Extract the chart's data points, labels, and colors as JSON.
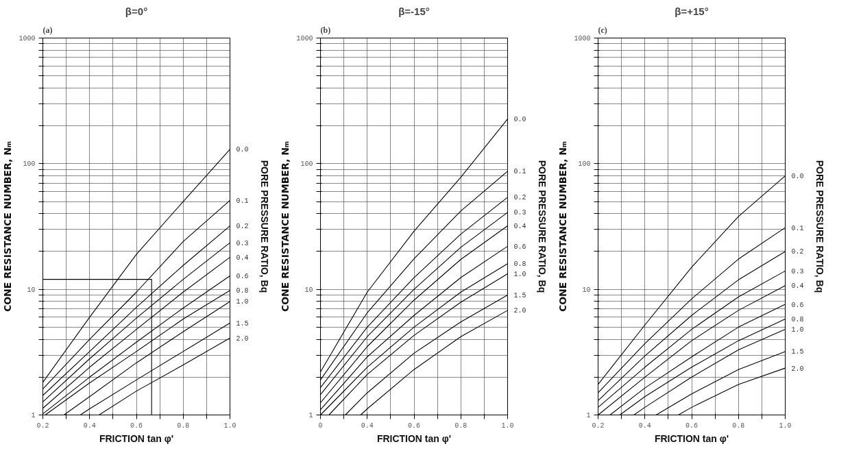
{
  "chart_data": [
    {
      "type": "line",
      "title": "β=0°",
      "annotations": [
        "(a)"
      ],
      "xlabel": "FRICTION tan φ'",
      "ylabel": "CONE RESISTANCE NUMBER, Nₘ",
      "y2label": "PORE PRESSURE RATIO, Bq",
      "xlim": [
        0.2,
        1.0
      ],
      "ylim": [
        1,
        1000
      ],
      "log": true,
      "grid": true,
      "marker": "none",
      "line_style": "solid",
      "xticks": [
        0.2,
        {
          "value": 0.3,
          "label": null
        },
        0.4,
        {
          "value": 0.5,
          "label": null
        },
        0.6,
        {
          "value": 0.7,
          "label": null
        },
        0.8,
        {
          "value": 0.9,
          "label": null
        },
        {
          "value": 1.0,
          "label": "1.0"
        }
      ],
      "yticks": [
        1,
        {
          "value": 2,
          "label": null
        },
        {
          "value": 3,
          "label": null
        },
        {
          "value": 4,
          "label": null
        },
        {
          "value": 5,
          "label": null
        },
        {
          "value": 6,
          "label": null
        },
        {
          "value": 7,
          "label": null
        },
        {
          "value": 8,
          "label": null
        },
        {
          "value": 9,
          "label": null
        },
        10,
        {
          "value": 20,
          "label": null
        },
        {
          "value": 30,
          "label": null
        },
        {
          "value": 40,
          "label": null
        },
        {
          "value": 50,
          "label": null
        },
        {
          "value": 60,
          "label": null
        },
        {
          "value": 70,
          "label": null
        },
        {
          "value": 80,
          "label": null
        },
        {
          "value": 90,
          "label": null
        },
        100,
        {
          "value": 200,
          "label": null
        },
        {
          "value": 300,
          "label": null
        },
        {
          "value": 400,
          "label": null
        },
        {
          "value": 500,
          "label": null
        },
        {
          "value": 600,
          "label": null
        },
        {
          "value": 700,
          "label": null
        },
        {
          "value": 800,
          "label": null
        },
        {
          "value": 900,
          "label": null
        },
        1000
      ],
      "series": [
        {
          "name": "0.0",
          "color": "#000000",
          "x": [
            0.2,
            0.4,
            0.6,
            0.8,
            1.0
          ],
          "values": [
            1.82,
            6,
            19,
            50,
            130
          ]
        },
        {
          "name": "0.1",
          "color": "#000000",
          "x": [
            0.2,
            0.4,
            0.6,
            0.8,
            1.0
          ],
          "values": [
            1.61,
            4,
            9.5,
            24,
            51
          ]
        },
        {
          "name": "0.2",
          "color": "#000000",
          "x": [
            0.2,
            0.4,
            0.6,
            0.8,
            1.0
          ],
          "values": [
            1.43,
            3.2,
            7.2,
            15.5,
            32
          ]
        },
        {
          "name": "0.3",
          "color": "#000000",
          "x": [
            0.2,
            0.4,
            0.6,
            0.8,
            1.0
          ],
          "values": [
            1.27,
            2.8,
            5.9,
            12,
            23.5
          ]
        },
        {
          "name": "0.4",
          "color": "#000000",
          "x": [
            0.2,
            0.4,
            0.6,
            0.8,
            1.0
          ],
          "values": [
            1.13,
            2.4,
            4.8,
            9.5,
            18
          ]
        },
        {
          "name": "0.6",
          "color": "#000000",
          "x": [
            0.2,
            0.4,
            0.6,
            0.8,
            1.0
          ],
          "values": [
            1.02,
            2.0,
            3.8,
            7.1,
            12.8
          ]
        },
        {
          "name": "0.8",
          "color": "#000000",
          "x": [
            0.21,
            0.4,
            0.6,
            0.8,
            1.0
          ],
          "values": [
            1,
            1.8,
            3.2,
            5.8,
            9.8
          ]
        },
        {
          "name": "1.0",
          "color": "#000000",
          "x": [
            0.29,
            0.4,
            0.6,
            0.8,
            1.0
          ],
          "values": [
            1,
            1.4,
            2.6,
            4.6,
            8
          ]
        },
        {
          "name": "1.5",
          "color": "#000000",
          "x": [
            0.36,
            0.4,
            0.6,
            0.8,
            1.0
          ],
          "values": [
            1,
            1.12,
            1.9,
            3.2,
            5.4
          ]
        },
        {
          "name": "2.0",
          "color": "#000000",
          "x": [
            0.44,
            0.6,
            0.8,
            1.0
          ],
          "values": [
            1,
            1.55,
            2.5,
            4.1
          ]
        },
        {
          "color": "#000000",
          "x": [
            0.2,
            0.665,
            0.665
          ],
          "values": [
            12,
            12,
            1
          ]
        }
      ]
    },
    {
      "type": "line",
      "title": "β=-15°",
      "annotations": [
        "(b)"
      ],
      "xlabel": "FRICTION tan φ'",
      "ylabel": "CONE RESISTANCE NUMBER, Nₘ",
      "y2label": "PORE PRESSURE RATIO, Bq",
      "xlim": [
        0.2,
        1.0
      ],
      "ylim": [
        1,
        1000
      ],
      "log": true,
      "grid": true,
      "marker": "none",
      "line_style": "solid",
      "xticks": [
        {
          "value": 0.2,
          "label": "0"
        },
        {
          "value": 0.3,
          "label": null
        },
        0.4,
        {
          "value": 0.5,
          "label": null
        },
        0.6,
        {
          "value": 0.7,
          "label": null
        },
        0.8,
        {
          "value": 0.9,
          "label": null
        },
        {
          "value": 1.0,
          "label": "1.0"
        }
      ],
      "yticks": [
        1,
        {
          "value": 2,
          "label": null
        },
        {
          "value": 3,
          "label": null
        },
        {
          "value": 4,
          "label": null
        },
        {
          "value": 5,
          "label": null
        },
        {
          "value": 6,
          "label": null
        },
        {
          "value": 7,
          "label": null
        },
        {
          "value": 8,
          "label": null
        },
        {
          "value": 9,
          "label": null
        },
        10,
        {
          "value": 20,
          "label": null
        },
        {
          "value": 30,
          "label": null
        },
        {
          "value": 40,
          "label": null
        },
        {
          "value": 50,
          "label": null
        },
        {
          "value": 60,
          "label": null
        },
        {
          "value": 70,
          "label": null
        },
        {
          "value": 80,
          "label": null
        },
        {
          "value": 90,
          "label": null
        },
        100,
        {
          "value": 200,
          "label": null
        },
        {
          "value": 300,
          "label": null
        },
        {
          "value": 400,
          "label": null
        },
        {
          "value": 500,
          "label": null
        },
        {
          "value": 600,
          "label": null
        },
        {
          "value": 700,
          "label": null
        },
        {
          "value": 800,
          "label": null
        },
        {
          "value": 900,
          "label": null
        },
        1000
      ],
      "series": [
        {
          "name": "0.0",
          "color": "#000000",
          "x": [
            0.2,
            0.4,
            0.6,
            0.8,
            1.0
          ],
          "values": [
            2.2,
            9.5,
            29,
            78,
            227
          ]
        },
        {
          "name": "0.1",
          "color": "#000000",
          "x": [
            0.2,
            0.4,
            0.6,
            0.8,
            1.0
          ],
          "values": [
            1.9,
            6.5,
            17.5,
            42,
            87
          ]
        },
        {
          "name": "0.2",
          "color": "#000000",
          "x": [
            0.2,
            0.4,
            0.6,
            0.8,
            1.0
          ],
          "values": [
            1.65,
            5,
            12.4,
            27.5,
            54
          ]
        },
        {
          "name": "0.3",
          "color": "#000000",
          "x": [
            0.2,
            0.4,
            0.6,
            0.8,
            1.0
          ],
          "values": [
            1.45,
            4.2,
            10,
            21.6,
            41
          ]
        },
        {
          "name": "0.4",
          "color": "#000000",
          "x": [
            0.2,
            0.4,
            0.6,
            0.8,
            1.0
          ],
          "values": [
            1.25,
            3.5,
            8.2,
            17.3,
            32
          ]
        },
        {
          "name": "0.6",
          "color": "#000000",
          "x": [
            0.2,
            0.4,
            0.6,
            0.8,
            1.0
          ],
          "values": [
            1.1,
            2.9,
            6.2,
            12.4,
            22
          ]
        },
        {
          "name": "0.8",
          "color": "#000000",
          "x": [
            0.2,
            0.4,
            0.6,
            0.8,
            1.0
          ],
          "values": [
            1,
            2.4,
            5,
            9.5,
            16
          ]
        },
        {
          "name": "1.0",
          "color": "#000000",
          "x": [
            0.236,
            0.4,
            0.6,
            0.8,
            1.0
          ],
          "values": [
            1,
            2.1,
            4.3,
            7.9,
            13.3
          ]
        },
        {
          "name": "1.5",
          "color": "#000000",
          "x": [
            0.306,
            0.4,
            0.6,
            0.8,
            1.0
          ],
          "values": [
            1,
            1.5,
            3.1,
            5.5,
            9
          ]
        },
        {
          "name": "2.0",
          "color": "#000000",
          "x": [
            0.372,
            0.4,
            0.6,
            0.8,
            1.0
          ],
          "values": [
            1,
            1.12,
            2.3,
            4.2,
            6.8
          ]
        }
      ]
    },
    {
      "type": "line",
      "title": "β=+15°",
      "annotations": [
        "(c)"
      ],
      "xlabel": "FRICTION tan φ'",
      "ylabel": "CONE RESISTANCE NUMBER, Nₘ",
      "y2label": "PORE PRESSURE RATIO, Bq",
      "xlim": [
        0.2,
        1.0
      ],
      "ylim": [
        1,
        1000
      ],
      "log": true,
      "grid": true,
      "marker": "none",
      "line_style": "solid",
      "xticks": [
        0.2,
        {
          "value": 0.3,
          "label": null
        },
        0.4,
        {
          "value": 0.5,
          "label": null
        },
        0.6,
        {
          "value": 0.7,
          "label": null
        },
        0.8,
        {
          "value": 0.9,
          "label": null
        },
        {
          "value": 1.0,
          "label": "1.0"
        }
      ],
      "yticks": [
        1,
        {
          "value": 2,
          "label": null
        },
        {
          "value": 3,
          "label": null
        },
        {
          "value": 4,
          "label": null
        },
        {
          "value": 5,
          "label": null
        },
        {
          "value": 6,
          "label": null
        },
        {
          "value": 7,
          "label": null
        },
        {
          "value": 8,
          "label": null
        },
        {
          "value": 9,
          "label": null
        },
        10,
        {
          "value": 20,
          "label": null
        },
        {
          "value": 30,
          "label": null
        },
        {
          "value": 40,
          "label": null
        },
        {
          "value": 50,
          "label": null
        },
        {
          "value": 60,
          "label": null
        },
        {
          "value": 70,
          "label": null
        },
        {
          "value": 80,
          "label": null
        },
        {
          "value": 90,
          "label": null
        },
        100,
        {
          "value": 200,
          "label": null
        },
        {
          "value": 300,
          "label": null
        },
        {
          "value": 400,
          "label": null
        },
        {
          "value": 500,
          "label": null
        },
        {
          "value": 600,
          "label": null
        },
        {
          "value": 700,
          "label": null
        },
        {
          "value": 800,
          "label": null
        },
        {
          "value": 900,
          "label": null
        },
        1000
      ],
      "series": [
        {
          "name": "0.0",
          "color": "#000000",
          "x": [
            0.2,
            0.4,
            0.6,
            0.8,
            1.0
          ],
          "values": [
            1.75,
            5.2,
            15,
            38,
            80
          ]
        },
        {
          "name": "0.1",
          "color": "#000000",
          "x": [
            0.2,
            0.4,
            0.6,
            0.8,
            1.0
          ],
          "values": [
            1.5,
            3.7,
            8.4,
            17.4,
            31
          ]
        },
        {
          "name": "0.2",
          "color": "#000000",
          "x": [
            0.2,
            0.4,
            0.6,
            0.8,
            1.0
          ],
          "values": [
            1.3,
            2.95,
            6.2,
            11.9,
            20
          ]
        },
        {
          "name": "0.3",
          "color": "#000000",
          "x": [
            0.2,
            0.4,
            0.6,
            0.8,
            1.0
          ],
          "values": [
            1.15,
            2.4,
            4.8,
            8.7,
            14
          ]
        },
        {
          "name": "0.4",
          "color": "#000000",
          "x": [
            0.2,
            0.4,
            0.6,
            0.8,
            1.0
          ],
          "values": [
            1,
            2.0,
            3.9,
            6.8,
            10.7
          ]
        },
        {
          "name": "0.6",
          "color": "#000000",
          "x": [
            0.251,
            0.4,
            0.6,
            0.8,
            1.0
          ],
          "values": [
            1,
            1.64,
            2.9,
            5,
            7.6
          ]
        },
        {
          "name": "0.8",
          "color": "#000000",
          "x": [
            0.293,
            0.4,
            0.6,
            0.8,
            1.0
          ],
          "values": [
            1,
            1.4,
            2.4,
            3.9,
            5.8
          ]
        },
        {
          "name": "1.0",
          "color": "#000000",
          "x": [
            0.353,
            0.4,
            0.6,
            0.8,
            1.0
          ],
          "values": [
            1,
            1.15,
            2.0,
            3.3,
            4.8
          ]
        },
        {
          "name": "1.5",
          "color": "#000000",
          "x": [
            0.448,
            0.6,
            0.8,
            1.0
          ],
          "values": [
            1,
            1.47,
            2.3,
            3.2
          ]
        },
        {
          "name": "2.0",
          "color": "#000000",
          "x": [
            0.543,
            0.6,
            0.8,
            1.0
          ],
          "values": [
            1,
            1.15,
            1.75,
            2.36
          ]
        }
      ]
    }
  ]
}
